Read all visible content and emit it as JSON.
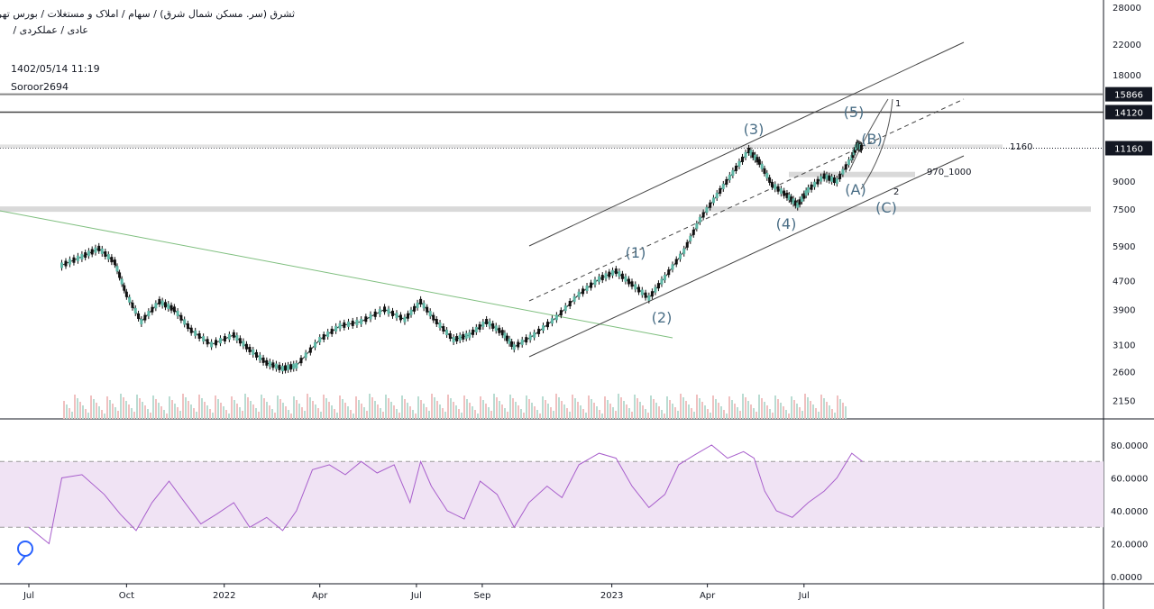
{
  "header": {
    "line1": "ثشرق (سر. مسکن شمال شرق) / سهام / املاک و مستغلات / بورس تهران",
    "line2": "عادی / عملکردی /",
    "timestamp": "1402/05/14 11:19",
    "author": "Soroor2694"
  },
  "colors": {
    "rsi_line": "#a85fcc",
    "rsi_band": "#f0e3f4",
    "price_tag": "#131722",
    "trend_fan": "#7fbf7f",
    "wave_label": "#4a6e86",
    "up_candle": "#5fb8a7",
    "down_candle": "#111111"
  },
  "chart_data": [
    {
      "type": "candlestick",
      "title": "",
      "y_scale": "log",
      "ylim": [
        2000,
        28000
      ],
      "y_ticks": [
        "28000",
        "22000",
        "18000",
        "15866",
        "14120",
        "11160",
        "9000",
        "7500",
        "5900",
        "4700",
        "3900",
        "3100",
        "2600",
        "2150"
      ],
      "price_tags": [
        "15866",
        "14120",
        "11160"
      ],
      "x_ticks": [
        "Jul",
        "Oct",
        "2022",
        "Apr",
        "Jul",
        "Sep",
        "2023",
        "Apr",
        "Jul"
      ],
      "series": [
        {
          "close_points": [
            {
              "date": "2021-08-01",
              "v": 5200
            },
            {
              "date": "2021-08-20",
              "v": 5500
            },
            {
              "date": "2021-09-05",
              "v": 5800
            },
            {
              "date": "2021-09-20",
              "v": 5300
            },
            {
              "date": "2021-10-01",
              "v": 4300
            },
            {
              "date": "2021-10-15",
              "v": 3600
            },
            {
              "date": "2021-11-01",
              "v": 4100
            },
            {
              "date": "2021-11-15",
              "v": 3900
            },
            {
              "date": "2021-12-01",
              "v": 3400
            },
            {
              "date": "2021-12-20",
              "v": 3100
            },
            {
              "date": "2022-01-10",
              "v": 3300
            },
            {
              "date": "2022-01-25",
              "v": 3000
            },
            {
              "date": "2022-02-10",
              "v": 2750
            },
            {
              "date": "2022-02-25",
              "v": 2650
            },
            {
              "date": "2022-03-10",
              "v": 2700
            },
            {
              "date": "2022-04-01",
              "v": 3200
            },
            {
              "date": "2022-04-20",
              "v": 3500
            },
            {
              "date": "2022-05-10",
              "v": 3600
            },
            {
              "date": "2022-06-01",
              "v": 3900
            },
            {
              "date": "2022-06-20",
              "v": 3650
            },
            {
              "date": "2022-07-05",
              "v": 4100
            },
            {
              "date": "2022-07-20",
              "v": 3600
            },
            {
              "date": "2022-08-05",
              "v": 3200
            },
            {
              "date": "2022-08-20",
              "v": 3300
            },
            {
              "date": "2022-09-05",
              "v": 3600
            },
            {
              "date": "2022-09-20",
              "v": 3350
            },
            {
              "date": "2022-10-01",
              "v": 3050
            },
            {
              "date": "2022-10-20",
              "v": 3300
            },
            {
              "date": "2022-11-10",
              "v": 3700
            },
            {
              "date": "2022-12-01",
              "v": 4300
            },
            {
              "date": "2022-12-20",
              "v": 4750
            },
            {
              "date": "2023-01-05",
              "v": 5000
            },
            {
              "date": "2023-01-20",
              "v": 4600
            },
            {
              "date": "2023-02-05",
              "v": 4200
            },
            {
              "date": "2023-02-20",
              "v": 4800
            },
            {
              "date": "2023-03-10",
              "v": 5700
            },
            {
              "date": "2023-03-25",
              "v": 7000
            },
            {
              "date": "2023-04-10",
              "v": 8200
            },
            {
              "date": "2023-04-25",
              "v": 9500
            },
            {
              "date": "2023-05-10",
              "v": 11000
            },
            {
              "date": "2023-05-20",
              "v": 10200
            },
            {
              "date": "2023-06-01",
              "v": 8800
            },
            {
              "date": "2023-06-15",
              "v": 8200
            },
            {
              "date": "2023-06-25",
              "v": 7700
            },
            {
              "date": "2023-07-05",
              "v": 8500
            },
            {
              "date": "2023-07-20",
              "v": 9300
            },
            {
              "date": "2023-08-01",
              "v": 9000
            },
            {
              "date": "2023-08-15",
              "v": 10500
            },
            {
              "date": "2023-08-20",
              "v": 11400
            },
            {
              "date": "2023-08-25",
              "v": 11160
            }
          ]
        }
      ],
      "annotations": {
        "wave_labels": [
          "(1)",
          "(2)",
          "(3)",
          "(4)",
          "(5)",
          "(A)",
          "(B)",
          "(C)"
        ],
        "level_notes": [
          "1160",
          "970_1000",
          "1",
          "2"
        ]
      }
    },
    {
      "type": "line",
      "title": "",
      "indicator": "RSI",
      "ylim": [
        0,
        80
      ],
      "y_ticks": [
        "80.0000",
        "60.0000",
        "40.0000",
        "20.0000",
        "0.0000"
      ],
      "bands": [
        70,
        30
      ],
      "points": [
        {
          "date": "2021-07-01",
          "v": 30
        },
        {
          "date": "2021-07-20",
          "v": 20
        },
        {
          "date": "2021-08-01",
          "v": 60
        },
        {
          "date": "2021-08-20",
          "v": 62
        },
        {
          "date": "2021-09-10",
          "v": 50
        },
        {
          "date": "2021-09-25",
          "v": 38
        },
        {
          "date": "2021-10-10",
          "v": 28
        },
        {
          "date": "2021-10-25",
          "v": 45
        },
        {
          "date": "2021-11-10",
          "v": 58
        },
        {
          "date": "2021-11-25",
          "v": 45
        },
        {
          "date": "2021-12-10",
          "v": 32
        },
        {
          "date": "2021-12-25",
          "v": 38
        },
        {
          "date": "2022-01-10",
          "v": 45
        },
        {
          "date": "2022-01-25",
          "v": 30
        },
        {
          "date": "2022-02-10",
          "v": 36
        },
        {
          "date": "2022-02-25",
          "v": 28
        },
        {
          "date": "2022-03-10",
          "v": 40
        },
        {
          "date": "2022-03-25",
          "v": 65
        },
        {
          "date": "2022-04-10",
          "v": 68
        },
        {
          "date": "2022-04-25",
          "v": 62
        },
        {
          "date": "2022-05-10",
          "v": 70
        },
        {
          "date": "2022-05-25",
          "v": 63
        },
        {
          "date": "2022-06-10",
          "v": 68
        },
        {
          "date": "2022-06-25",
          "v": 45
        },
        {
          "date": "2022-07-05",
          "v": 70
        },
        {
          "date": "2022-07-15",
          "v": 55
        },
        {
          "date": "2022-07-30",
          "v": 40
        },
        {
          "date": "2022-08-15",
          "v": 35
        },
        {
          "date": "2022-08-30",
          "v": 58
        },
        {
          "date": "2022-09-15",
          "v": 50
        },
        {
          "date": "2022-10-01",
          "v": 30
        },
        {
          "date": "2022-10-15",
          "v": 45
        },
        {
          "date": "2022-11-01",
          "v": 55
        },
        {
          "date": "2022-11-15",
          "v": 48
        },
        {
          "date": "2022-12-01",
          "v": 68
        },
        {
          "date": "2022-12-20",
          "v": 75
        },
        {
          "date": "2023-01-05",
          "v": 72
        },
        {
          "date": "2023-01-20",
          "v": 55
        },
        {
          "date": "2023-02-05",
          "v": 42
        },
        {
          "date": "2023-02-20",
          "v": 50
        },
        {
          "date": "2023-03-05",
          "v": 68
        },
        {
          "date": "2023-03-20",
          "v": 74
        },
        {
          "date": "2023-04-05",
          "v": 80
        },
        {
          "date": "2023-04-20",
          "v": 72
        },
        {
          "date": "2023-05-05",
          "v": 76
        },
        {
          "date": "2023-05-15",
          "v": 72
        },
        {
          "date": "2023-05-25",
          "v": 52
        },
        {
          "date": "2023-06-05",
          "v": 40
        },
        {
          "date": "2023-06-20",
          "v": 36
        },
        {
          "date": "2023-07-05",
          "v": 45
        },
        {
          "date": "2023-07-20",
          "v": 52
        },
        {
          "date": "2023-08-01",
          "v": 60
        },
        {
          "date": "2023-08-15",
          "v": 75
        },
        {
          "date": "2023-08-25",
          "v": 70
        }
      ]
    }
  ]
}
